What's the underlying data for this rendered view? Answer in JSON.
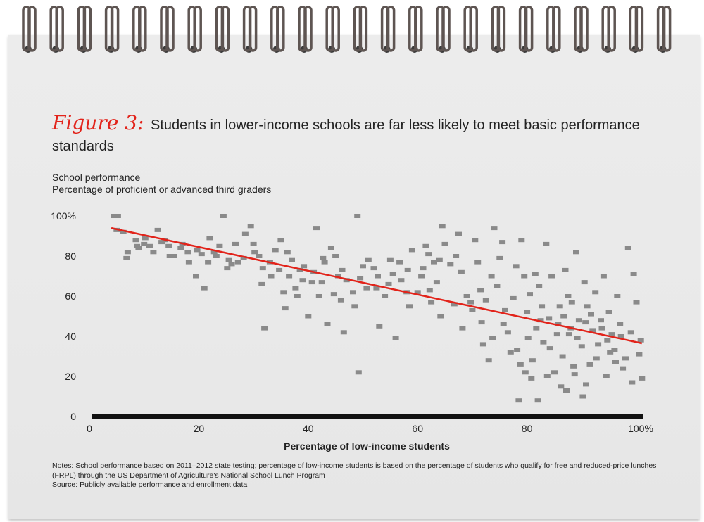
{
  "figure": {
    "label": "Figure 3:",
    "title": "Students in lower-income schools are far less likely to meet basic performance standards"
  },
  "chart_data": {
    "type": "scatter",
    "ylabel_line1": "School performance",
    "ylabel_line2": "Percentage of proficient or advanced third graders",
    "xlabel": "Percentage of low-income students",
    "xlim": [
      0,
      101
    ],
    "ylim": [
      0,
      100
    ],
    "xticks": [
      "0",
      "20",
      "40",
      "60",
      "80",
      "100%"
    ],
    "yticks": [
      "0",
      "20",
      "40",
      "60",
      "80",
      "100%"
    ],
    "grid": false,
    "point_color": "#8a8a8a",
    "trend_color": "#e2231a",
    "trendline": {
      "x": [
        4,
        101
      ],
      "y": [
        94,
        36.5
      ]
    },
    "points": [
      [
        4.5,
        100
      ],
      [
        5.2,
        100
      ],
      [
        5,
        93
      ],
      [
        6.2,
        92
      ],
      [
        7,
        82
      ],
      [
        6.8,
        79
      ],
      [
        8.5,
        88
      ],
      [
        9,
        84
      ],
      [
        10,
        86
      ],
      [
        11,
        85
      ],
      [
        12.5,
        93
      ],
      [
        13.8,
        88
      ],
      [
        14.5,
        85
      ],
      [
        15.5,
        80
      ],
      [
        17,
        86
      ],
      [
        18,
        82
      ],
      [
        19.5,
        70
      ],
      [
        20.5,
        81
      ],
      [
        21,
        64
      ],
      [
        22,
        89
      ],
      [
        22.8,
        82
      ],
      [
        23.8,
        85
      ],
      [
        24.5,
        100
      ],
      [
        25.5,
        78
      ],
      [
        26,
        76
      ],
      [
        27.2,
        77
      ],
      [
        28.5,
        91
      ],
      [
        29.5,
        95
      ],
      [
        30,
        86
      ],
      [
        31,
        80
      ],
      [
        31.5,
        66
      ],
      [
        32,
        44
      ],
      [
        33,
        77
      ],
      [
        34,
        83
      ],
      [
        35,
        88
      ],
      [
        35.5,
        62
      ],
      [
        35.8,
        54
      ],
      [
        36.5,
        70
      ],
      [
        37,
        78
      ],
      [
        38,
        60
      ],
      [
        38.5,
        73
      ],
      [
        39,
        68
      ],
      [
        40,
        50
      ],
      [
        41,
        72
      ],
      [
        41.5,
        94
      ],
      [
        42,
        60
      ],
      [
        42.5,
        67
      ],
      [
        43,
        77
      ],
      [
        43.5,
        46
      ],
      [
        44.2,
        84
      ],
      [
        45,
        80
      ],
      [
        45.5,
        70
      ],
      [
        46,
        58
      ],
      [
        46.5,
        42
      ],
      [
        47,
        68
      ],
      [
        48.5,
        55
      ],
      [
        49,
        100
      ],
      [
        49.5,
        69
      ],
      [
        49.2,
        22
      ],
      [
        50,
        75
      ],
      [
        51,
        78
      ],
      [
        52,
        74
      ],
      [
        52.5,
        64
      ],
      [
        53,
        45
      ],
      [
        54,
        60
      ],
      [
        55,
        78
      ],
      [
        55.5,
        71
      ],
      [
        56,
        39
      ],
      [
        57,
        68
      ],
      [
        58,
        62
      ],
      [
        58.5,
        55
      ],
      [
        59,
        83
      ],
      [
        60,
        62
      ],
      [
        61,
        74
      ],
      [
        61.5,
        85
      ],
      [
        62,
        81
      ],
      [
        62.5,
        57
      ],
      [
        63,
        77
      ],
      [
        63.5,
        67
      ],
      [
        64,
        78
      ],
      [
        64.5,
        95
      ],
      [
        65,
        86
      ],
      [
        66,
        76
      ],
      [
        67,
        80
      ],
      [
        67.5,
        91
      ],
      [
        68,
        72
      ],
      [
        68.2,
        44
      ],
      [
        69,
        60
      ],
      [
        70,
        53
      ],
      [
        70.5,
        88
      ],
      [
        71,
        77
      ],
      [
        71.5,
        63
      ],
      [
        72,
        36
      ],
      [
        72.5,
        58
      ],
      [
        73,
        28
      ],
      [
        73.5,
        70
      ],
      [
        74,
        94
      ],
      [
        74.5,
        65
      ],
      [
        75,
        79
      ],
      [
        75.5,
        87
      ],
      [
        76,
        53
      ],
      [
        76.5,
        42
      ],
      [
        77,
        32
      ],
      [
        77.5,
        59
      ],
      [
        78,
        75
      ],
      [
        78.2,
        33
      ],
      [
        78.8,
        26
      ],
      [
        79,
        88
      ],
      [
        79.5,
        70
      ],
      [
        80,
        52
      ],
      [
        80.5,
        61
      ],
      [
        80.8,
        19
      ],
      [
        81,
        28
      ],
      [
        81.5,
        71
      ],
      [
        82,
        8
      ],
      [
        82.2,
        65
      ],
      [
        82.5,
        48
      ],
      [
        83,
        37
      ],
      [
        83.5,
        86
      ],
      [
        84,
        49
      ],
      [
        84.5,
        70
      ],
      [
        85,
        22
      ],
      [
        85.5,
        41
      ],
      [
        86,
        55
      ],
      [
        86.5,
        30
      ],
      [
        87,
        73
      ],
      [
        87.2,
        13
      ],
      [
        87.5,
        60
      ],
      [
        88,
        44
      ],
      [
        88.5,
        25
      ],
      [
        89,
        82
      ],
      [
        89.5,
        48
      ],
      [
        90,
        35
      ],
      [
        90.2,
        10
      ],
      [
        90.5,
        67
      ],
      [
        91,
        55
      ],
      [
        91.5,
        26
      ],
      [
        92,
        43
      ],
      [
        92.5,
        62
      ],
      [
        93,
        36
      ],
      [
        93.5,
        48
      ],
      [
        94,
        70
      ],
      [
        94.5,
        20
      ],
      [
        95,
        52
      ],
      [
        95.5,
        41
      ],
      [
        96,
        33
      ],
      [
        96.5,
        60
      ],
      [
        97,
        46
      ],
      [
        97.5,
        24
      ],
      [
        98,
        29
      ],
      [
        98.5,
        84
      ],
      [
        99,
        42
      ],
      [
        99.5,
        71
      ],
      [
        100,
        57
      ],
      [
        100.5,
        31
      ],
      [
        100.8,
        38
      ],
      [
        101,
        19
      ],
      [
        90.8,
        16
      ],
      [
        78.5,
        8
      ],
      [
        86.2,
        15
      ],
      [
        83.7,
        20
      ],
      [
        88.7,
        21
      ],
      [
        92.7,
        29
      ],
      [
        96.2,
        27
      ],
      [
        99.2,
        17
      ],
      [
        95.2,
        32
      ],
      [
        79.7,
        22
      ],
      [
        84.2,
        34
      ],
      [
        87.7,
        41
      ],
      [
        90.7,
        47
      ],
      [
        93.7,
        44
      ],
      [
        97.2,
        40
      ],
      [
        81.7,
        44
      ],
      [
        85.7,
        46
      ],
      [
        89.2,
        39
      ],
      [
        91.7,
        51
      ],
      [
        94.7,
        38
      ],
      [
        80.2,
        39
      ],
      [
        82.7,
        55
      ],
      [
        86.7,
        50
      ],
      [
        88.2,
        57
      ],
      [
        75.7,
        46
      ],
      [
        73.7,
        39
      ],
      [
        71.7,
        47
      ],
      [
        69.7,
        57
      ],
      [
        66.7,
        56
      ],
      [
        64.2,
        50
      ],
      [
        62.2,
        63
      ],
      [
        60.7,
        70
      ],
      [
        58.2,
        73
      ],
      [
        56.7,
        77
      ],
      [
        54.7,
        66
      ],
      [
        52.7,
        70
      ],
      [
        50.7,
        64
      ],
      [
        48.2,
        62
      ],
      [
        46.2,
        73
      ],
      [
        44.7,
        61
      ],
      [
        42.7,
        79
      ],
      [
        40.7,
        67
      ],
      [
        39.2,
        75
      ],
      [
        37.7,
        64
      ],
      [
        36.2,
        82
      ],
      [
        34.7,
        73
      ],
      [
        33.2,
        70
      ],
      [
        31.7,
        74
      ],
      [
        30.2,
        82
      ],
      [
        28.2,
        79
      ],
      [
        26.7,
        86
      ],
      [
        25.2,
        74
      ],
      [
        23.2,
        80
      ],
      [
        21.7,
        77
      ],
      [
        19.7,
        83
      ],
      [
        18.2,
        77
      ],
      [
        16.7,
        84
      ],
      [
        14.7,
        80
      ],
      [
        13.2,
        87
      ],
      [
        11.7,
        82
      ],
      [
        10.2,
        89
      ],
      [
        8.7,
        85
      ]
    ]
  },
  "notes": {
    "line1": "Notes: School performance based on 2011–2012 state testing; percentage of low-income students is based on the percentage of students who qualify for free and reduced-price lunches (FRPL) through the US Department of Agriculture's National School Lunch Program",
    "line2": "Source: Publicly available performance and enrollment data"
  }
}
